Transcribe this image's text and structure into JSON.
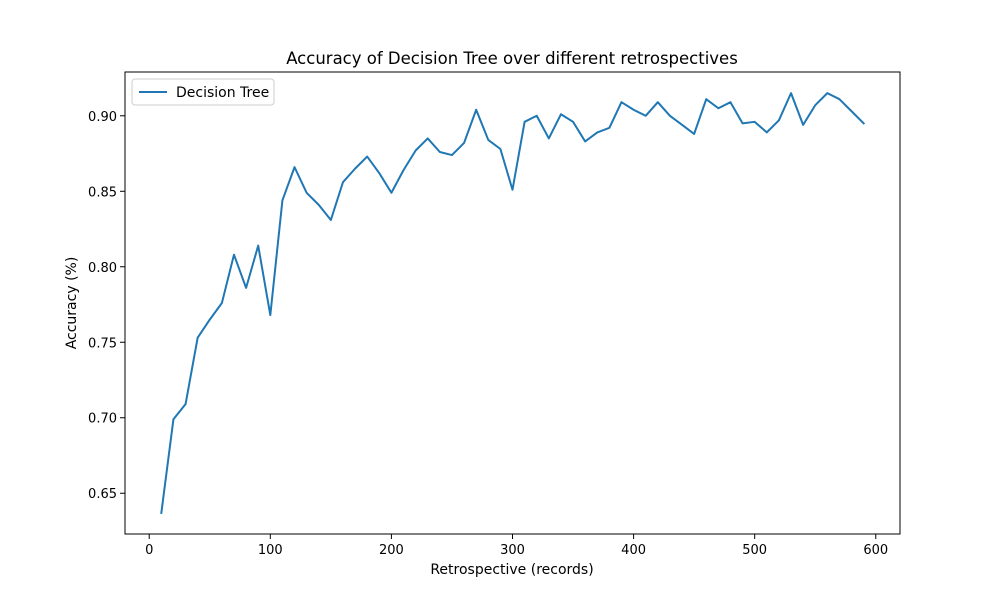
{
  "chart_data": {
    "type": "line",
    "title": "Accuracy of Decision Tree over different retrospectives",
    "xlabel": "Retrospective (records)",
    "ylabel": "Accuracy (%)",
    "xlim": [
      -20,
      620
    ],
    "ylim": [
      0.623,
      0.929
    ],
    "x_ticks": [
      0,
      100,
      200,
      300,
      400,
      500,
      600
    ],
    "y_ticks": [
      0.65,
      0.7,
      0.75,
      0.8,
      0.85,
      0.9
    ],
    "y_tick_labels": [
      "0.65",
      "0.70",
      "0.75",
      "0.80",
      "0.85",
      "0.90"
    ],
    "grid": false,
    "legend": "top-left",
    "series": [
      {
        "name": "Decision Tree",
        "color": "#1f77b4",
        "x": [
          10,
          20,
          30,
          40,
          50,
          60,
          70,
          80,
          90,
          100,
          110,
          120,
          130,
          140,
          150,
          160,
          170,
          180,
          190,
          200,
          210,
          220,
          230,
          240,
          250,
          260,
          270,
          280,
          290,
          300,
          310,
          320,
          330,
          340,
          350,
          360,
          370,
          380,
          390,
          400,
          410,
          420,
          430,
          440,
          450,
          460,
          470,
          480,
          490,
          500,
          510,
          520,
          530,
          540,
          550,
          560,
          570,
          580,
          590
        ],
        "y": [
          0.637,
          0.699,
          0.709,
          0.753,
          0.765,
          0.776,
          0.808,
          0.786,
          0.814,
          0.768,
          0.844,
          0.866,
          0.849,
          0.841,
          0.831,
          0.856,
          0.865,
          0.873,
          0.862,
          0.849,
          0.864,
          0.877,
          0.885,
          0.876,
          0.874,
          0.882,
          0.904,
          0.884,
          0.878,
          0.851,
          0.896,
          0.9,
          0.885,
          0.901,
          0.896,
          0.883,
          0.889,
          0.892,
          0.909,
          0.904,
          0.9,
          0.909,
          0.9,
          0.894,
          0.888,
          0.911,
          0.905,
          0.909,
          0.895,
          0.896,
          0.889,
          0.897,
          0.915,
          0.894,
          0.907,
          0.915,
          0.911,
          0.903,
          0.895
        ]
      }
    ]
  }
}
